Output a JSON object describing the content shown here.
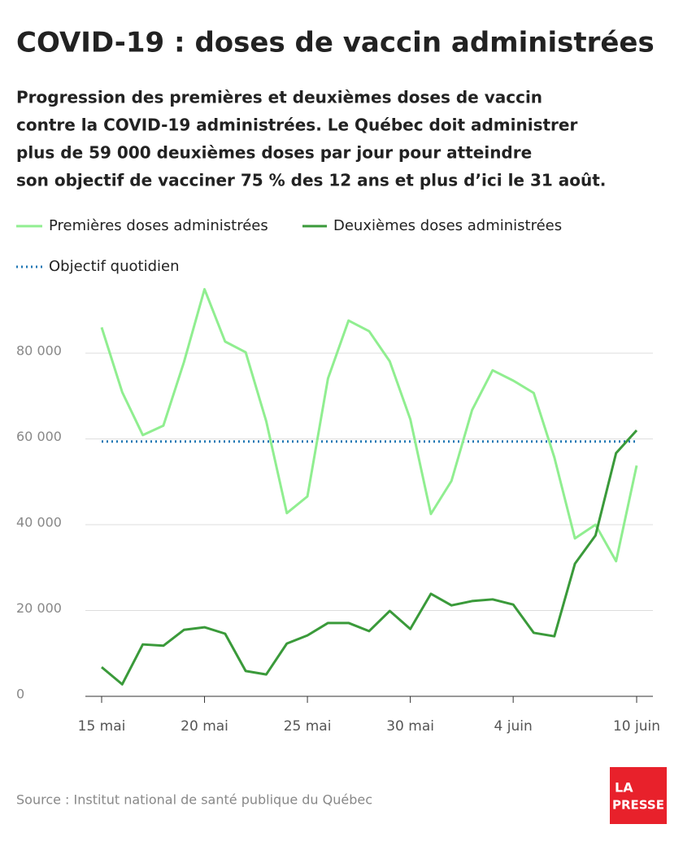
{
  "chart_data": {
    "type": "line",
    "title": "COVID-19 : doses de vaccin administrées",
    "subtitle": [
      "Progression des premières et deuxièmes doses de vaccin",
      "contre la COVID-19 administrées. Le Québec doit administrer",
      "plus de 59 000 deuxièmes doses par jour pour atteindre",
      "son objectif de vacciner 75 % des 12 ans et plus d’ici le 31 août."
    ],
    "categories": [
      "15 mai",
      null,
      null,
      null,
      null,
      "20 mai",
      null,
      null,
      null,
      null,
      "25 mai",
      null,
      null,
      null,
      null,
      "30 mai",
      null,
      null,
      null,
      null,
      "4 juin",
      null,
      null,
      null,
      null,
      null,
      "10 juin"
    ],
    "series": [
      {
        "name": "Premières doses administrées",
        "color": "#90ee90",
        "values": [
          86000,
          70900,
          60900,
          63100,
          77900,
          94900,
          82700,
          80200,
          64100,
          42700,
          46600,
          74100,
          87600,
          85100,
          78100,
          64600,
          42500,
          50200,
          66700,
          76000,
          73600,
          70700,
          55700,
          36800,
          40000,
          31500,
          53800
        ]
      },
      {
        "name": "Deuxièmes doses administrées",
        "color": "#3a9a3a",
        "values": [
          6800,
          2800,
          12100,
          11800,
          15500,
          16100,
          14600,
          5900,
          5100,
          12300,
          14200,
          17100,
          17100,
          15200,
          19900,
          15700,
          23900,
          21200,
          22200,
          22600,
          21400,
          14800,
          14000,
          30900,
          37500,
          56700,
          62000
        ]
      }
    ],
    "target": {
      "name": "Objectif quotidien",
      "value": 59400,
      "color": "#1f77b4"
    },
    "ylim": [
      0,
      95000
    ],
    "yticks": [
      0,
      {
        "value": 20000,
        "label": "20 000"
      },
      {
        "value": 40000,
        "label": "40 000"
      },
      {
        "value": 60000,
        "label": "60 000"
      },
      {
        "value": 80000,
        "label": "80 000"
      }
    ],
    "grid": true,
    "source": "Source : Institut national de santé publique du Québec",
    "logo": [
      "LA",
      "PRESSE"
    ]
  }
}
